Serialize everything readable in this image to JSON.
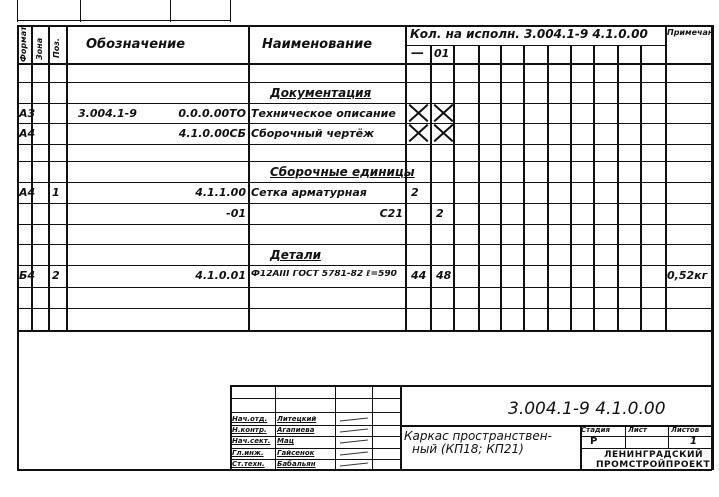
{
  "header": {
    "format": "Формат",
    "zone": "Зона",
    "pos": "Поз.",
    "designation": "Обозначение",
    "name": "Наименование",
    "qty_for_variant": "Кол. на исполн. 3.004.1-9 4.1.0.00",
    "variant_dash": "—",
    "variant_01": "01",
    "note": "Примечание"
  },
  "rows": [
    {
      "format": "",
      "zone": "",
      "pos": "",
      "designation_a": "",
      "designation": "",
      "name": "",
      "section": "",
      "q1": "",
      "q2": "",
      "note": ""
    },
    {
      "section": "Документация"
    },
    {
      "format": "А3",
      "designation_a": "3.004.1-9",
      "designation": "0.0.0.00ТО",
      "name": "Техническое описание",
      "q1": "X",
      "q2": "X"
    },
    {
      "format": "А4",
      "designation": "4.1.0.00СБ",
      "name": "Сборочный чертёж",
      "q1": "X",
      "q2": "X"
    },
    {},
    {
      "section": "Сборочные единицы"
    },
    {
      "format": "А4",
      "pos": "1",
      "designation": "4.1.1.00",
      "name": "Сетка арматурная",
      "q1": "2"
    },
    {
      "designation": "-01",
      "name": "С21",
      "q2": "2"
    },
    {},
    {
      "section": "Детали"
    },
    {
      "format": "Б4",
      "pos": "2",
      "designation": "4.1.0.01",
      "name": "Ф12АIII ГОСТ 5781-82 ℓ=590",
      "q1": "44",
      "q2": "48",
      "note": "0,52кг"
    },
    {},
    {}
  ],
  "title_block": {
    "doc_number": "3.004.1-9 4.1.0.00",
    "title": "Каркас пространствен-ный (КП18; КП21)",
    "title_line1": "Каркас пространствен-",
    "title_line2": "ный (КП18; КП21)",
    "stage_label": "Стадия",
    "sheet_label": "Лист",
    "sheets_label": "Листов",
    "stage": "Р",
    "sheet": "",
    "sheets": "1",
    "organization_line1": "ЛЕНИНГРАДСКИЙ",
    "organization_line2": "ПРОМСТРОЙПРОЕКТ",
    "signatures": [
      {
        "role": "Нач.отд.",
        "name": "Литецкий"
      },
      {
        "role": "Н.контр.",
        "name": "Агапиева"
      },
      {
        "role": "Нач.сект.",
        "name": "Мац"
      },
      {
        "role": "Гл.инж.",
        "name": "Гайсенок"
      },
      {
        "role": "Ст.техн.",
        "name": "Бабальян"
      }
    ]
  }
}
